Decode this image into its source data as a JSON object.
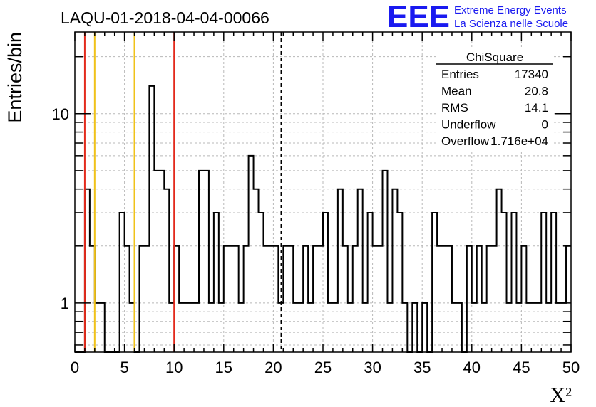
{
  "chart_data": {
    "type": "histogram",
    "title": "LAQU-01-2018-04-04-00066",
    "xlabel": "X²",
    "ylabel": "Entries/bin",
    "xlim": [
      0,
      50
    ],
    "ylim": [
      0.55,
      27
    ],
    "yscale": "log",
    "grid": true,
    "bin_width": 0.5,
    "x_ticks": [
      "0",
      "5",
      "10",
      "15",
      "20",
      "25",
      "30",
      "35",
      "40",
      "45",
      "50"
    ],
    "y_ticks": [
      "1",
      "10"
    ],
    "bins": [
      {
        "x": 1.0,
        "y": 4
      },
      {
        "x": 1.5,
        "y": 2
      },
      {
        "x": 2.0,
        "y": 1
      },
      {
        "x": 2.5,
        "y": 1
      },
      {
        "x": 4.5,
        "y": 3
      },
      {
        "x": 5.0,
        "y": 2
      },
      {
        "x": 5.5,
        "y": 1
      },
      {
        "x": 6.5,
        "y": 2
      },
      {
        "x": 7.0,
        "y": 2
      },
      {
        "x": 7.5,
        "y": 14
      },
      {
        "x": 8.0,
        "y": 5
      },
      {
        "x": 8.5,
        "y": 5
      },
      {
        "x": 9.0,
        "y": 4
      },
      {
        "x": 9.5,
        "y": 1
      },
      {
        "x": 10.0,
        "y": 2
      },
      {
        "x": 10.5,
        "y": 1
      },
      {
        "x": 11.0,
        "y": 1
      },
      {
        "x": 11.5,
        "y": 1
      },
      {
        "x": 12.0,
        "y": 1
      },
      {
        "x": 12.5,
        "y": 5
      },
      {
        "x": 13.0,
        "y": 5
      },
      {
        "x": 13.5,
        "y": 1
      },
      {
        "x": 14.0,
        "y": 3
      },
      {
        "x": 14.5,
        "y": 1
      },
      {
        "x": 15.0,
        "y": 2
      },
      {
        "x": 15.5,
        "y": 2
      },
      {
        "x": 16.0,
        "y": 2
      },
      {
        "x": 16.5,
        "y": 1
      },
      {
        "x": 17.0,
        "y": 2
      },
      {
        "x": 17.5,
        "y": 6
      },
      {
        "x": 18.0,
        "y": 4
      },
      {
        "x": 18.5,
        "y": 3
      },
      {
        "x": 19.0,
        "y": 2
      },
      {
        "x": 19.5,
        "y": 2
      },
      {
        "x": 20.0,
        "y": 2
      },
      {
        "x": 20.5,
        "y": 1
      },
      {
        "x": 21.0,
        "y": 2
      },
      {
        "x": 21.5,
        "y": 2
      },
      {
        "x": 22.0,
        "y": 1
      },
      {
        "x": 22.5,
        "y": 1
      },
      {
        "x": 23.0,
        "y": 2
      },
      {
        "x": 23.5,
        "y": 1
      },
      {
        "x": 24.0,
        "y": 2
      },
      {
        "x": 24.5,
        "y": 2
      },
      {
        "x": 25.0,
        "y": 3
      },
      {
        "x": 25.5,
        "y": 1
      },
      {
        "x": 26.0,
        "y": 1
      },
      {
        "x": 26.5,
        "y": 4
      },
      {
        "x": 27.0,
        "y": 2
      },
      {
        "x": 27.5,
        "y": 1
      },
      {
        "x": 28.0,
        "y": 2
      },
      {
        "x": 28.5,
        "y": 4
      },
      {
        "x": 29.0,
        "y": 1
      },
      {
        "x": 29.5,
        "y": 3
      },
      {
        "x": 30.0,
        "y": 2
      },
      {
        "x": 30.5,
        "y": 2
      },
      {
        "x": 31.0,
        "y": 5
      },
      {
        "x": 31.5,
        "y": 1
      },
      {
        "x": 32.0,
        "y": 4
      },
      {
        "x": 32.5,
        "y": 3
      },
      {
        "x": 33.0,
        "y": 1
      },
      {
        "x": 34.0,
        "y": 1
      },
      {
        "x": 35.0,
        "y": 1
      },
      {
        "x": 36.0,
        "y": 3
      },
      {
        "x": 36.5,
        "y": 2
      },
      {
        "x": 37.0,
        "y": 2
      },
      {
        "x": 37.5,
        "y": 2
      },
      {
        "x": 38.0,
        "y": 1
      },
      {
        "x": 38.5,
        "y": 1
      },
      {
        "x": 39.5,
        "y": 2
      },
      {
        "x": 40.0,
        "y": 1
      },
      {
        "x": 40.5,
        "y": 2
      },
      {
        "x": 41.0,
        "y": 1
      },
      {
        "x": 41.5,
        "y": 2
      },
      {
        "x": 42.0,
        "y": 2
      },
      {
        "x": 42.5,
        "y": 4
      },
      {
        "x": 43.0,
        "y": 3
      },
      {
        "x": 43.5,
        "y": 1
      },
      {
        "x": 44.0,
        "y": 3
      },
      {
        "x": 44.5,
        "y": 1
      },
      {
        "x": 45.0,
        "y": 2
      },
      {
        "x": 45.5,
        "y": 1
      },
      {
        "x": 46.0,
        "y": 1
      },
      {
        "x": 46.5,
        "y": 1
      },
      {
        "x": 47.0,
        "y": 3
      },
      {
        "x": 47.5,
        "y": 1
      },
      {
        "x": 48.0,
        "y": 3
      },
      {
        "x": 48.5,
        "y": 1
      },
      {
        "x": 49.0,
        "y": 1
      },
      {
        "x": 49.5,
        "y": 2
      }
    ],
    "vertical_lines": [
      {
        "x": 1,
        "color": "#e32a1c",
        "style": "solid"
      },
      {
        "x": 2,
        "color": "#f0c21a",
        "style": "solid"
      },
      {
        "x": 6,
        "color": "#f0c21a",
        "style": "solid"
      },
      {
        "x": 10,
        "color": "#e32a1c",
        "style": "solid"
      },
      {
        "x": 20.8,
        "color": "#000000",
        "style": "dashed"
      }
    ],
    "stats_box": {
      "title": "ChiSquare",
      "rows": [
        {
          "label": "Entries",
          "value": "17340"
        },
        {
          "label": "Mean",
          "value": "20.8"
        },
        {
          "label": "RMS",
          "value": "14.1"
        },
        {
          "label": "Underflow",
          "value": "0"
        },
        {
          "label": "Overflow",
          "value": "1.716e+04"
        }
      ]
    }
  },
  "logo": {
    "text": "EEE",
    "line1": "Extreme Energy Events",
    "line2": "La Scienza nelle Scuole",
    "color": "#1a1af0"
  }
}
